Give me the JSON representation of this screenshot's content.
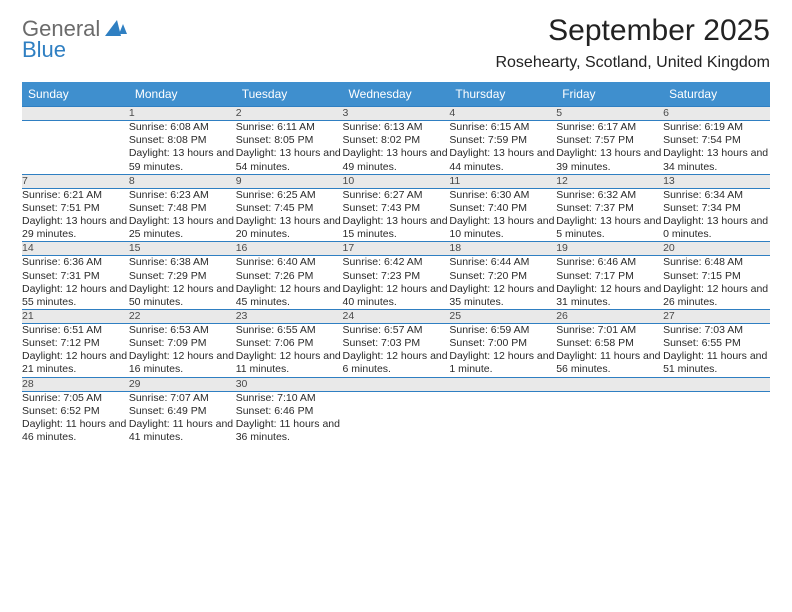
{
  "logo": {
    "word1": "General",
    "word2": "Blue",
    "word1_color": "#6b6b6b",
    "word2_color": "#2f7fc2",
    "sail_color": "#2f7fc2"
  },
  "title": {
    "month": "September 2025",
    "location": "Rosehearty, Scotland, United Kingdom"
  },
  "colors": {
    "header_bg": "#3f8fce",
    "header_text": "#ffffff",
    "row_border": "#2f7fc2",
    "daynum_bg": "#e9e9e9",
    "daynum_text": "#4a4a4a",
    "body_text": "#2a2a2a",
    "page_bg": "#ffffff"
  },
  "typography": {
    "month_fontsize": 30,
    "location_fontsize": 16,
    "header_fontsize": 12,
    "daynum_fontsize": 12,
    "cell_fontsize": 10.5
  },
  "weekdays": [
    "Sunday",
    "Monday",
    "Tuesday",
    "Wednesday",
    "Thursday",
    "Friday",
    "Saturday"
  ],
  "weeks": [
    [
      {
        "n": "",
        "sunrise": "",
        "sunset": "",
        "daylight": ""
      },
      {
        "n": "1",
        "sunrise": "Sunrise: 6:08 AM",
        "sunset": "Sunset: 8:08 PM",
        "daylight": "Daylight: 13 hours and 59 minutes."
      },
      {
        "n": "2",
        "sunrise": "Sunrise: 6:11 AM",
        "sunset": "Sunset: 8:05 PM",
        "daylight": "Daylight: 13 hours and 54 minutes."
      },
      {
        "n": "3",
        "sunrise": "Sunrise: 6:13 AM",
        "sunset": "Sunset: 8:02 PM",
        "daylight": "Daylight: 13 hours and 49 minutes."
      },
      {
        "n": "4",
        "sunrise": "Sunrise: 6:15 AM",
        "sunset": "Sunset: 7:59 PM",
        "daylight": "Daylight: 13 hours and 44 minutes."
      },
      {
        "n": "5",
        "sunrise": "Sunrise: 6:17 AM",
        "sunset": "Sunset: 7:57 PM",
        "daylight": "Daylight: 13 hours and 39 minutes."
      },
      {
        "n": "6",
        "sunrise": "Sunrise: 6:19 AM",
        "sunset": "Sunset: 7:54 PM",
        "daylight": "Daylight: 13 hours and 34 minutes."
      }
    ],
    [
      {
        "n": "7",
        "sunrise": "Sunrise: 6:21 AM",
        "sunset": "Sunset: 7:51 PM",
        "daylight": "Daylight: 13 hours and 29 minutes."
      },
      {
        "n": "8",
        "sunrise": "Sunrise: 6:23 AM",
        "sunset": "Sunset: 7:48 PM",
        "daylight": "Daylight: 13 hours and 25 minutes."
      },
      {
        "n": "9",
        "sunrise": "Sunrise: 6:25 AM",
        "sunset": "Sunset: 7:45 PM",
        "daylight": "Daylight: 13 hours and 20 minutes."
      },
      {
        "n": "10",
        "sunrise": "Sunrise: 6:27 AM",
        "sunset": "Sunset: 7:43 PM",
        "daylight": "Daylight: 13 hours and 15 minutes."
      },
      {
        "n": "11",
        "sunrise": "Sunrise: 6:30 AM",
        "sunset": "Sunset: 7:40 PM",
        "daylight": "Daylight: 13 hours and 10 minutes."
      },
      {
        "n": "12",
        "sunrise": "Sunrise: 6:32 AM",
        "sunset": "Sunset: 7:37 PM",
        "daylight": "Daylight: 13 hours and 5 minutes."
      },
      {
        "n": "13",
        "sunrise": "Sunrise: 6:34 AM",
        "sunset": "Sunset: 7:34 PM",
        "daylight": "Daylight: 13 hours and 0 minutes."
      }
    ],
    [
      {
        "n": "14",
        "sunrise": "Sunrise: 6:36 AM",
        "sunset": "Sunset: 7:31 PM",
        "daylight": "Daylight: 12 hours and 55 minutes."
      },
      {
        "n": "15",
        "sunrise": "Sunrise: 6:38 AM",
        "sunset": "Sunset: 7:29 PM",
        "daylight": "Daylight: 12 hours and 50 minutes."
      },
      {
        "n": "16",
        "sunrise": "Sunrise: 6:40 AM",
        "sunset": "Sunset: 7:26 PM",
        "daylight": "Daylight: 12 hours and 45 minutes."
      },
      {
        "n": "17",
        "sunrise": "Sunrise: 6:42 AM",
        "sunset": "Sunset: 7:23 PM",
        "daylight": "Daylight: 12 hours and 40 minutes."
      },
      {
        "n": "18",
        "sunrise": "Sunrise: 6:44 AM",
        "sunset": "Sunset: 7:20 PM",
        "daylight": "Daylight: 12 hours and 35 minutes."
      },
      {
        "n": "19",
        "sunrise": "Sunrise: 6:46 AM",
        "sunset": "Sunset: 7:17 PM",
        "daylight": "Daylight: 12 hours and 31 minutes."
      },
      {
        "n": "20",
        "sunrise": "Sunrise: 6:48 AM",
        "sunset": "Sunset: 7:15 PM",
        "daylight": "Daylight: 12 hours and 26 minutes."
      }
    ],
    [
      {
        "n": "21",
        "sunrise": "Sunrise: 6:51 AM",
        "sunset": "Sunset: 7:12 PM",
        "daylight": "Daylight: 12 hours and 21 minutes."
      },
      {
        "n": "22",
        "sunrise": "Sunrise: 6:53 AM",
        "sunset": "Sunset: 7:09 PM",
        "daylight": "Daylight: 12 hours and 16 minutes."
      },
      {
        "n": "23",
        "sunrise": "Sunrise: 6:55 AM",
        "sunset": "Sunset: 7:06 PM",
        "daylight": "Daylight: 12 hours and 11 minutes."
      },
      {
        "n": "24",
        "sunrise": "Sunrise: 6:57 AM",
        "sunset": "Sunset: 7:03 PM",
        "daylight": "Daylight: 12 hours and 6 minutes."
      },
      {
        "n": "25",
        "sunrise": "Sunrise: 6:59 AM",
        "sunset": "Sunset: 7:00 PM",
        "daylight": "Daylight: 12 hours and 1 minute."
      },
      {
        "n": "26",
        "sunrise": "Sunrise: 7:01 AM",
        "sunset": "Sunset: 6:58 PM",
        "daylight": "Daylight: 11 hours and 56 minutes."
      },
      {
        "n": "27",
        "sunrise": "Sunrise: 7:03 AM",
        "sunset": "Sunset: 6:55 PM",
        "daylight": "Daylight: 11 hours and 51 minutes."
      }
    ],
    [
      {
        "n": "28",
        "sunrise": "Sunrise: 7:05 AM",
        "sunset": "Sunset: 6:52 PM",
        "daylight": "Daylight: 11 hours and 46 minutes."
      },
      {
        "n": "29",
        "sunrise": "Sunrise: 7:07 AM",
        "sunset": "Sunset: 6:49 PM",
        "daylight": "Daylight: 11 hours and 41 minutes."
      },
      {
        "n": "30",
        "sunrise": "Sunrise: 7:10 AM",
        "sunset": "Sunset: 6:46 PM",
        "daylight": "Daylight: 11 hours and 36 minutes."
      },
      {
        "n": "",
        "sunrise": "",
        "sunset": "",
        "daylight": ""
      },
      {
        "n": "",
        "sunrise": "",
        "sunset": "",
        "daylight": ""
      },
      {
        "n": "",
        "sunrise": "",
        "sunset": "",
        "daylight": ""
      },
      {
        "n": "",
        "sunrise": "",
        "sunset": "",
        "daylight": ""
      }
    ]
  ]
}
